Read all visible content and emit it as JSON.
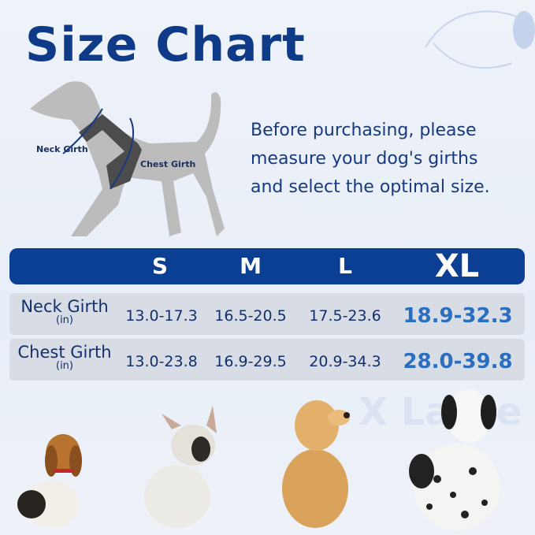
{
  "title": "Size Chart",
  "intro": [
    "Before purchasing, please",
    "measure your dog's girths",
    "and select the optimal size."
  ],
  "diagram": {
    "neck_label": "Neck Girth",
    "chest_label": "Chest Girth"
  },
  "table": {
    "sizes": [
      "S",
      "M",
      "L",
      "XL"
    ],
    "rows": [
      {
        "label": "Neck Girth",
        "unit": "(in)",
        "values": [
          "13.0-17.3",
          "16.5-20.5",
          "17.5-23.6",
          "18.9-32.3"
        ]
      },
      {
        "label": "Chest Girth",
        "unit": "(in)",
        "values": [
          "13.0-23.8",
          "16.9-29.5",
          "20.9-34.3",
          "28.0-39.8"
        ]
      }
    ]
  },
  "watermark": "X Large",
  "colors": {
    "brand": "#0b3f94",
    "title": "#0f3a88",
    "xl_value": "#2a6ec0",
    "row_bg": "#d7dce5"
  },
  "photos": [
    "beagle",
    "french-bulldog",
    "golden-retriever",
    "dalmatian"
  ]
}
